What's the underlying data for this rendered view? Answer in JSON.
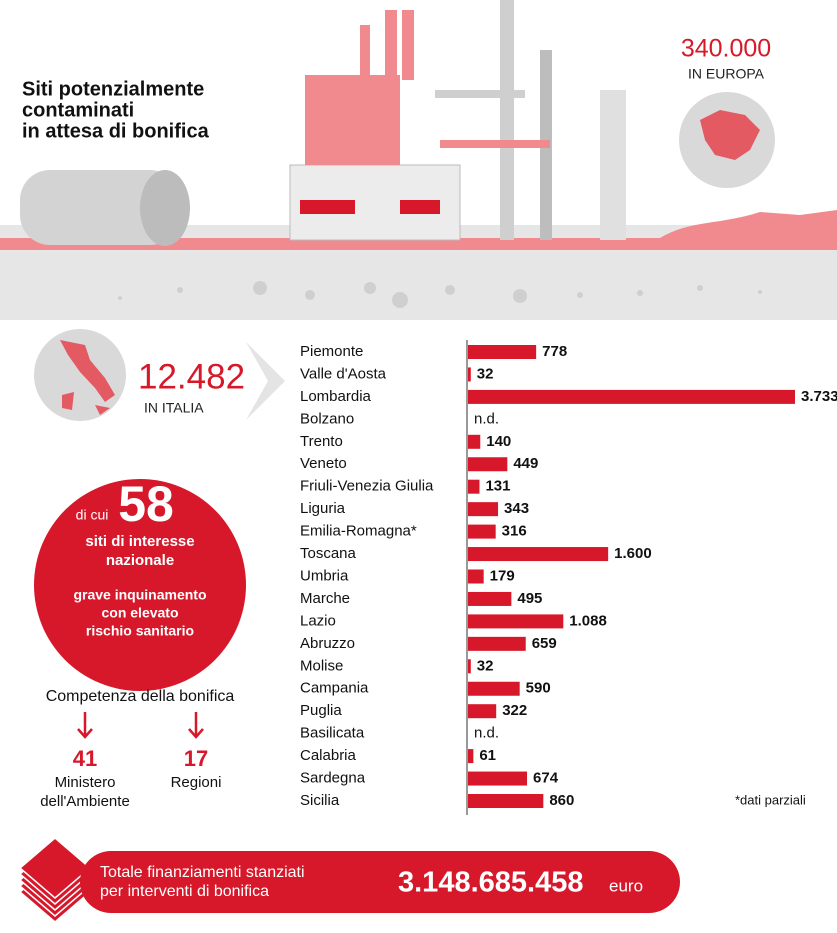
{
  "title_lines": [
    "Siti potenzialmente",
    "contaminati",
    "in attesa di bonifica"
  ],
  "europe": {
    "number": "340.000",
    "label": "IN EUROPA"
  },
  "italy": {
    "number": "12.482",
    "label": "IN ITALIA"
  },
  "sin": {
    "prefix": "di cui",
    "number": "58",
    "lines": [
      "siti di interesse",
      "nazionale"
    ],
    "note_lines": [
      "grave inquinamento",
      "con elevato",
      "rischio sanitario"
    ]
  },
  "competenza": {
    "title": "Competenza della bonifica",
    "ministero": {
      "number": "41",
      "lines": [
        "Ministero",
        "dell'Ambiente"
      ]
    },
    "regioni": {
      "number": "17",
      "lines": [
        "Regioni"
      ]
    }
  },
  "footnote": "*dati parziali",
  "total": {
    "lines": [
      "Totale finanziamenti stanziati",
      "per interventi di bonifica"
    ],
    "amount": "3.148.685.458",
    "unit": "euro"
  },
  "chart_data": {
    "type": "bar",
    "orientation": "horizontal",
    "color": "#d7182a",
    "categories": [
      "Piemonte",
      "Valle d'Aosta",
      "Lombardia",
      "Bolzano",
      "Trento",
      "Veneto",
      "Friuli-Venezia Giulia",
      "Liguria",
      "Emilia-Romagna*",
      "Toscana",
      "Umbria",
      "Marche",
      "Lazio",
      "Abruzzo",
      "Molise",
      "Campania",
      "Puglia",
      "Basilicata",
      "Calabria",
      "Sardegna",
      "Sicilia"
    ],
    "values": [
      778,
      32,
      3733,
      null,
      140,
      449,
      131,
      343,
      316,
      1600,
      179,
      495,
      1088,
      659,
      32,
      590,
      322,
      null,
      61,
      674,
      860
    ],
    "value_labels": [
      "778",
      "32",
      "3.733",
      "n.d.",
      "140",
      "449",
      "131",
      "343",
      "316",
      "1.600",
      "179",
      "495",
      "1.088",
      "659",
      "32",
      "590",
      "322",
      "n.d.",
      "61",
      "674",
      "860"
    ],
    "xlim": [
      0,
      3733
    ]
  }
}
